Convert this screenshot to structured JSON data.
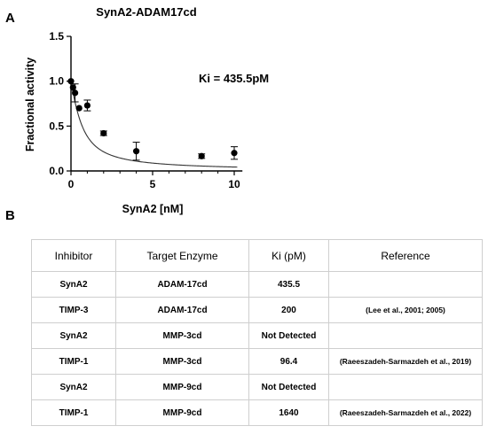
{
  "panel_a": {
    "letter": "A"
  },
  "panel_b": {
    "letter": "B"
  },
  "chart_data": {
    "type": "scatter",
    "title": "SynA2-ADAM17cd",
    "xlabel": "SynA2 [nM]",
    "ylabel": "Fractional activity",
    "xlim": [
      0,
      10.5
    ],
    "ylim": [
      0,
      1.5
    ],
    "x_ticks": [
      0,
      5,
      10
    ],
    "y_ticks": [
      0.0,
      0.5,
      1.0,
      1.5
    ],
    "grid": false,
    "legend": "none",
    "annotation": "Ki = 435.5pM",
    "points": [
      {
        "x": 0,
        "y": 1.0,
        "err": 0.0
      },
      {
        "x": 0.125,
        "y": 0.93,
        "err": 0.0
      },
      {
        "x": 0.25,
        "y": 0.87,
        "err": 0.1
      },
      {
        "x": 0.5,
        "y": 0.7,
        "err": 0.0
      },
      {
        "x": 1,
        "y": 0.73,
        "err": 0.06
      },
      {
        "x": 2,
        "y": 0.42,
        "err": 0.025
      },
      {
        "x": 4,
        "y": 0.22,
        "err": 0.1
      },
      {
        "x": 8,
        "y": 0.165,
        "err": 0.025
      },
      {
        "x": 10,
        "y": 0.2,
        "err": 0.07
      }
    ],
    "fit_curve": {
      "model": "tight-binding inhibition (Morrison)",
      "Ki_nM": 0.4355,
      "enzyme_nM": 0.5
    },
    "colors": {
      "points": "#000000",
      "curve": "#333333"
    }
  },
  "table": {
    "headers": [
      "Inhibitor",
      "Target Enzyme",
      "Ki (pM)",
      "Reference"
    ],
    "rows": [
      [
        "SynA2",
        "ADAM-17cd",
        "435.5",
        ""
      ],
      [
        "TIMP-3",
        "ADAM-17cd",
        "200",
        "(Lee et al., 2001; 2005)"
      ],
      [
        "SynA2",
        "MMP-3cd",
        "Not Detected",
        ""
      ],
      [
        "TIMP-1",
        "MMP-3cd",
        "96.4",
        "(Raeeszadeh-Sarmazdeh et al., 2019)"
      ],
      [
        "SynA2",
        "MMP-9cd",
        "Not Detected",
        ""
      ],
      [
        "TIMP-1",
        "MMP-9cd",
        "1640",
        "(Raeeszadeh-Sarmazdeh et al., 2022)"
      ]
    ]
  }
}
